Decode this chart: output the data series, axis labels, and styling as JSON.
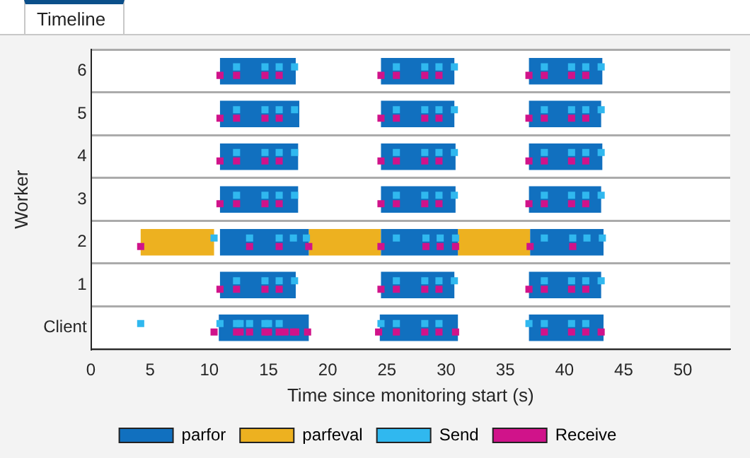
{
  "chart_data": {
    "type": "bar",
    "title": "Timeline",
    "orientation": "horizontal",
    "xlabel": "Time since monitoring start (s)",
    "ylabel": "Worker",
    "categories": [
      "6",
      "5",
      "4",
      "3",
      "2",
      "1",
      "Client"
    ],
    "xlim": [
      0,
      54
    ],
    "xticks": [
      0,
      5,
      10,
      15,
      20,
      25,
      30,
      35,
      40,
      45,
      50
    ],
    "grid": "y",
    "legend": "bottom",
    "series": [
      {
        "name": "parfor",
        "color": "#1170bf",
        "values": [
          6.4,
          6.7,
          6.6,
          6.6,
          7.5,
          6.4,
          7.6
        ],
        "base": [
          10.9,
          10.9,
          10.9,
          10.9,
          10.9,
          10.9,
          10.8
        ]
      },
      {
        "color": "#1170bf",
        "values": [
          6.2,
          6.2,
          6.3,
          6.3,
          6.5,
          6.2,
          6.6
        ],
        "base": [
          24.5,
          24.5,
          24.5,
          24.5,
          24.5,
          24.5,
          24.4
        ]
      },
      {
        "color": "#1170bf",
        "values": [
          6.2,
          6.1,
          6.2,
          6.1,
          6.2,
          6.1,
          6.3
        ],
        "base": [
          37.0,
          37.0,
          37.0,
          37.0,
          37.1,
          37.0,
          37.0
        ]
      },
      {
        "name": "parfeval",
        "color": "#edb120",
        "values": [
          null,
          null,
          null,
          null,
          6.2,
          null,
          null
        ],
        "base": [
          null,
          null,
          null,
          null,
          4.2,
          null,
          null
        ]
      },
      {
        "color": "#edb120",
        "values": [
          null,
          null,
          null,
          null,
          6.1,
          null,
          null
        ],
        "base": [
          null,
          null,
          null,
          null,
          18.4,
          null,
          null
        ]
      },
      {
        "color": "#edb120",
        "values": [
          null,
          null,
          null,
          null,
          6.1,
          null,
          null
        ],
        "base": [
          null,
          null,
          null,
          null,
          31.0,
          null,
          null
        ]
      },
      {
        "name": "Send",
        "type": "scatter",
        "color": "#30b8ef",
        "x": [
          "6",
          "6",
          "6",
          "6",
          "6",
          "6",
          "6",
          "6",
          "6",
          "6",
          "6",
          "6",
          "5",
          "5",
          "5",
          "5",
          "5",
          "5",
          "5",
          "5",
          "5",
          "5",
          "5",
          "5",
          "4",
          "4",
          "4",
          "4",
          "4",
          "4",
          "4",
          "4",
          "4",
          "4",
          "4",
          "4",
          "3",
          "3",
          "3",
          "3",
          "3",
          "3",
          "3",
          "3",
          "3",
          "3",
          "3",
          "3",
          "2",
          "2",
          "2",
          "2",
          "2",
          "2",
          "2",
          "2",
          "2",
          "2",
          "2",
          "2",
          "2",
          "1",
          "1",
          "1",
          "1",
          "1",
          "1",
          "1",
          "1",
          "1",
          "1",
          "1",
          "1",
          "Client",
          "Client",
          "Client",
          "Client",
          "Client",
          "Client",
          "Client",
          "Client",
          "Client",
          "Client",
          "Client",
          "Client",
          "Client",
          "Client",
          "Client",
          "Client"
        ],
        "values": [
          12.3,
          14.7,
          15.9,
          17.2,
          25.8,
          28.2,
          29.4,
          30.7,
          38.3,
          40.6,
          41.8,
          43.1,
          12.3,
          14.7,
          15.9,
          17.2,
          25.8,
          28.2,
          29.4,
          30.7,
          38.3,
          40.6,
          41.8,
          43.1,
          12.3,
          14.7,
          15.9,
          17.2,
          25.8,
          28.2,
          29.4,
          30.7,
          38.3,
          40.6,
          41.8,
          43.1,
          12.3,
          14.7,
          15.9,
          17.2,
          25.8,
          28.2,
          29.4,
          30.7,
          38.3,
          40.6,
          41.8,
          43.1,
          10.4,
          13.4,
          15.9,
          17.1,
          18.2,
          25.8,
          28.3,
          29.5,
          30.8,
          38.3,
          40.7,
          41.9,
          43.2,
          12.3,
          14.7,
          15.9,
          17.2,
          25.8,
          28.2,
          29.4,
          30.7,
          38.3,
          40.6,
          41.8,
          43.1,
          4.2,
          10.9,
          12.3,
          12.6,
          13.4,
          14.7,
          15.0,
          15.9,
          24.5,
          25.8,
          28.2,
          29.4,
          37.0,
          38.3,
          40.6,
          41.8
        ]
      },
      {
        "name": "Receive",
        "type": "scatter",
        "color": "#d0138a",
        "x": [
          "6",
          "6",
          "6",
          "6",
          "6",
          "6",
          "6",
          "6",
          "6",
          "6",
          "6",
          "6",
          "5",
          "5",
          "5",
          "5",
          "5",
          "5",
          "5",
          "5",
          "5",
          "5",
          "5",
          "5",
          "4",
          "4",
          "4",
          "4",
          "4",
          "4",
          "4",
          "4",
          "4",
          "4",
          "4",
          "4",
          "3",
          "3",
          "3",
          "3",
          "3",
          "3",
          "3",
          "3",
          "3",
          "3",
          "3",
          "3",
          "2",
          "2",
          "2",
          "2",
          "2",
          "2",
          "2",
          "2",
          "2",
          "2",
          "1",
          "1",
          "1",
          "1",
          "1",
          "1",
          "1",
          "1",
          "1",
          "1",
          "1",
          "1",
          "Client",
          "Client",
          "Client",
          "Client",
          "Client",
          "Client",
          "Client",
          "Client",
          "Client",
          "Client",
          "Client",
          "Client",
          "Client",
          "Client",
          "Client",
          "Client",
          "Client",
          "Client",
          "Client",
          "Client"
        ],
        "values": [
          10.9,
          12.3,
          14.7,
          15.9,
          24.5,
          25.8,
          28.2,
          29.4,
          37.0,
          38.3,
          40.6,
          41.8,
          10.9,
          12.3,
          14.7,
          15.9,
          24.5,
          25.8,
          28.2,
          29.4,
          37.0,
          38.3,
          40.6,
          41.8,
          10.9,
          12.3,
          14.7,
          15.9,
          24.5,
          25.8,
          28.2,
          29.4,
          37.0,
          38.3,
          40.6,
          41.8,
          10.9,
          12.3,
          14.7,
          15.9,
          24.5,
          25.8,
          28.2,
          29.4,
          37.0,
          38.3,
          40.6,
          41.8,
          4.2,
          13.4,
          15.9,
          18.4,
          24.5,
          28.3,
          29.5,
          30.8,
          37.1,
          40.7,
          10.9,
          12.3,
          14.7,
          15.9,
          24.5,
          25.8,
          28.2,
          29.4,
          37.0,
          38.3,
          40.6,
          41.8,
          10.4,
          12.3,
          12.6,
          13.4,
          14.7,
          15.0,
          15.9,
          16.4,
          17.1,
          17.3,
          18.3,
          24.3,
          25.8,
          28.2,
          29.4,
          30.8,
          38.3,
          40.6,
          41.8,
          43.1
        ]
      }
    ]
  }
}
